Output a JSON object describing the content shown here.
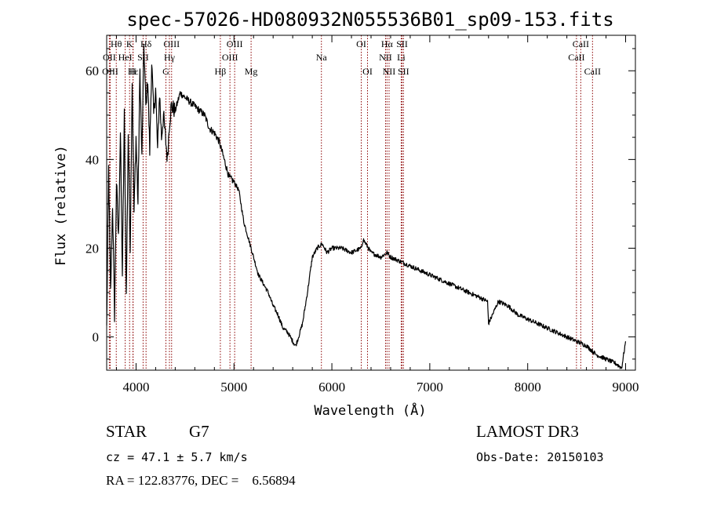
{
  "chart_data": {
    "type": "line",
    "title": "spec-57026-HD080932N055536B01_sp09-153.fits",
    "xlabel": "Wavelength (Å)",
    "ylabel": "Flux (relative)",
    "xlim": [
      3700,
      9100
    ],
    "ylim": [
      -7.5,
      68
    ],
    "xticks": [
      4000,
      5000,
      6000,
      7000,
      8000,
      9000
    ],
    "yticks": [
      0,
      20,
      40,
      60
    ],
    "grid": false,
    "series": [
      {
        "name": "spectrum",
        "x": [
          3700,
          3720,
          3740,
          3760,
          3780,
          3800,
          3820,
          3840,
          3860,
          3880,
          3900,
          3920,
          3940,
          3960,
          3980,
          4000,
          4020,
          4040,
          4060,
          4080,
          4100,
          4120,
          4140,
          4160,
          4180,
          4200,
          4220,
          4240,
          4260,
          4280,
          4300,
          4320,
          4340,
          4360,
          4400,
          4450,
          4500,
          4550,
          4600,
          4650,
          4700,
          4750,
          4800,
          4850,
          4900,
          4950,
          5000,
          5050,
          5100,
          5150,
          5200,
          5250,
          5300,
          5350,
          5400,
          5450,
          5500,
          5550,
          5600,
          5630,
          5660,
          5700,
          5750,
          5800,
          5850,
          5900,
          5950,
          6000,
          6100,
          6200,
          6300,
          6320,
          6400,
          6500,
          6563,
          6600,
          6700,
          6800,
          6900,
          7000,
          7100,
          7200,
          7300,
          7400,
          7500,
          7590,
          7600,
          7700,
          7800,
          7900,
          8000,
          8100,
          8200,
          8300,
          8400,
          8500,
          8600,
          8700,
          8800,
          8900,
          8960,
          9000
        ],
        "values": [
          2,
          38,
          10,
          30,
          5,
          35,
          22,
          46,
          14,
          50,
          9,
          46,
          20,
          58,
          28,
          45,
          30,
          60,
          40,
          66,
          52,
          58,
          42,
          62,
          50,
          56,
          42,
          55,
          45,
          50,
          45,
          40,
          48,
          52,
          51,
          55,
          54,
          53,
          52,
          51,
          50,
          47,
          46,
          44,
          40,
          36,
          35,
          33,
          26,
          22,
          18,
          14,
          12,
          10,
          7,
          5,
          2,
          1,
          -1,
          -2,
          0,
          3,
          10,
          18,
          20,
          21,
          19,
          20,
          20,
          19,
          20,
          22,
          19,
          18,
          19,
          18,
          17,
          16,
          15,
          14,
          13,
          12,
          11,
          10,
          9,
          8,
          3,
          8,
          7,
          5,
          4,
          3,
          2,
          1,
          0,
          -1,
          -2,
          -4,
          -5,
          -6,
          -7,
          -1
        ]
      }
    ],
    "line_markers": [
      {
        "label": "Hθ",
        "x": 3798,
        "row": 0
      },
      {
        "label": "OII",
        "x": 3727,
        "row": 1
      },
      {
        "label": "OIII",
        "x": 3736,
        "row": 2
      },
      {
        "label": "K",
        "x": 3934,
        "row": 0
      },
      {
        "label": "HeI",
        "x": 3889,
        "row": 1
      },
      {
        "label": "Hε",
        "x": 3970,
        "row": 2
      },
      {
        "label": "Hδ",
        "x": 4102,
        "row": 0
      },
      {
        "label": "SII",
        "x": 4072,
        "row": 1
      },
      {
        "label": "H",
        "x": 3968,
        "row": 2
      },
      {
        "label": "OIII",
        "x": 4363,
        "row": 0
      },
      {
        "label": "Hγ",
        "x": 4341,
        "row": 1
      },
      {
        "label": "G",
        "x": 4305,
        "row": 2
      },
      {
        "label": "Hβ",
        "x": 4861,
        "row": 2
      },
      {
        "label": "OIII",
        "x": 5007,
        "row": 0
      },
      {
        "label": "OIII",
        "x": 4959,
        "row": 1
      },
      {
        "label": "Mg",
        "x": 5175,
        "row": 2
      },
      {
        "label": "Na",
        "x": 5893,
        "row": 1
      },
      {
        "label": "OI",
        "x": 6300,
        "row": 0
      },
      {
        "label": "OI",
        "x": 6364,
        "row": 2
      },
      {
        "label": "Hα",
        "x": 6563,
        "row": 0
      },
      {
        "label": "NII",
        "x": 6548,
        "row": 1
      },
      {
        "label": "NII",
        "x": 6584,
        "row": 2
      },
      {
        "label": "SII",
        "x": 6717,
        "row": 0
      },
      {
        "label": "Li",
        "x": 6708,
        "row": 1
      },
      {
        "label": "SII",
        "x": 6731,
        "row": 2
      },
      {
        "label": "CaII",
        "x": 8542,
        "row": 0
      },
      {
        "label": "CaII",
        "x": 8498,
        "row": 1
      },
      {
        "label": "CaII",
        "x": 8662,
        "row": 2
      }
    ]
  },
  "info": {
    "class": "STAR",
    "subclass": "G7",
    "survey": "LAMOST DR3",
    "cz": "cz = 47.1 ± 5.7 km/s",
    "obs_date": "Obs-Date: 20150103",
    "radec": "RA = 122.83776, DEC =    6.56894"
  },
  "colors": {
    "spectrum": "#000000",
    "marker": "#8b0000"
  }
}
